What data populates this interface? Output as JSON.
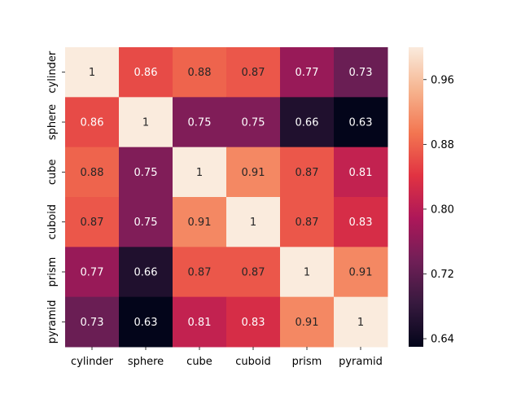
{
  "chart_data": {
    "type": "heatmap",
    "title": "",
    "xlabel": "",
    "ylabel": "",
    "x_categories": [
      "cylinder",
      "sphere",
      "cube",
      "cuboid",
      "prism",
      "pyramid"
    ],
    "y_categories": [
      "cylinder",
      "sphere",
      "cube",
      "cuboid",
      "prism",
      "pyramid"
    ],
    "values": [
      [
        1,
        0.86,
        0.88,
        0.87,
        0.77,
        0.73
      ],
      [
        0.86,
        1,
        0.75,
        0.75,
        0.66,
        0.63
      ],
      [
        0.88,
        0.75,
        1,
        0.91,
        0.87,
        0.81
      ],
      [
        0.87,
        0.75,
        0.91,
        1,
        0.87,
        0.83
      ],
      [
        0.77,
        0.66,
        0.87,
        0.87,
        1,
        0.91
      ],
      [
        0.73,
        0.63,
        0.81,
        0.83,
        0.91,
        1
      ]
    ],
    "colorbar": {
      "min": 0.63,
      "max": 1.0,
      "ticks": [
        0.64,
        0.72,
        0.8,
        0.88,
        0.96
      ],
      "tick_labels": [
        "0.64",
        "0.72",
        "0.80",
        "0.88",
        "0.96"
      ],
      "colormap": "rocket",
      "colormap_stops": [
        "#03051a",
        "#36193e",
        "#701f57",
        "#ad1759",
        "#e13342",
        "#f37651",
        "#f6b48f",
        "#faebdd"
      ]
    },
    "annotation_color_dark_bg": "#ffffff",
    "annotation_color_light_bg": "#262626",
    "grid": false,
    "legend": "colorbar-right"
  }
}
